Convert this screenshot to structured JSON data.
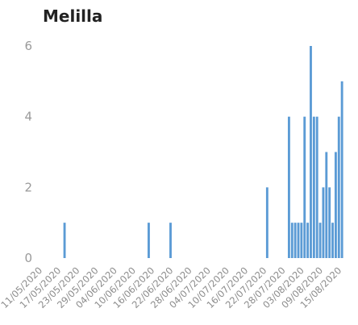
{
  "chart_data": {
    "type": "bar",
    "title": "Melilla",
    "xlabel": "",
    "ylabel": "",
    "ylim": [
      0,
      6
    ],
    "yticks": [
      0,
      2,
      4,
      6
    ],
    "x_start": "11/05/2020",
    "x_end": "16/08/2020",
    "xtick_labels": [
      "11/05/2020",
      "17/05/2020",
      "23/05/2020",
      "29/05/2020",
      "04/06/2020",
      "10/06/2020",
      "16/06/2020",
      "22/06/2020",
      "28/06/2020",
      "04/07/2020",
      "10/07/2020",
      "16/07/2020",
      "22/07/2020",
      "28/07/2020",
      "03/08/2020",
      "09/08/2020",
      "15/08/2020"
    ],
    "grid": false,
    "legend": "none",
    "bar_color": "#5b9bd5",
    "bars": [
      {
        "date": "18/05/2020",
        "value": 1
      },
      {
        "date": "14/06/2020",
        "value": 1
      },
      {
        "date": "21/06/2020",
        "value": 1
      },
      {
        "date": "22/07/2020",
        "value": 2
      },
      {
        "date": "29/07/2020",
        "value": 4
      },
      {
        "date": "30/07/2020",
        "value": 1
      },
      {
        "date": "31/07/2020",
        "value": 1
      },
      {
        "date": "01/08/2020",
        "value": 1
      },
      {
        "date": "02/08/2020",
        "value": 1
      },
      {
        "date": "03/08/2020",
        "value": 4
      },
      {
        "date": "04/08/2020",
        "value": 1
      },
      {
        "date": "05/08/2020",
        "value": 6
      },
      {
        "date": "06/08/2020",
        "value": 4
      },
      {
        "date": "07/08/2020",
        "value": 4
      },
      {
        "date": "08/08/2020",
        "value": 1
      },
      {
        "date": "09/08/2020",
        "value": 2
      },
      {
        "date": "10/08/2020",
        "value": 3
      },
      {
        "date": "11/08/2020",
        "value": 2
      },
      {
        "date": "12/08/2020",
        "value": 1
      },
      {
        "date": "13/08/2020",
        "value": 3
      },
      {
        "date": "14/08/2020",
        "value": 4
      },
      {
        "date": "15/08/2020",
        "value": 5
      }
    ]
  }
}
